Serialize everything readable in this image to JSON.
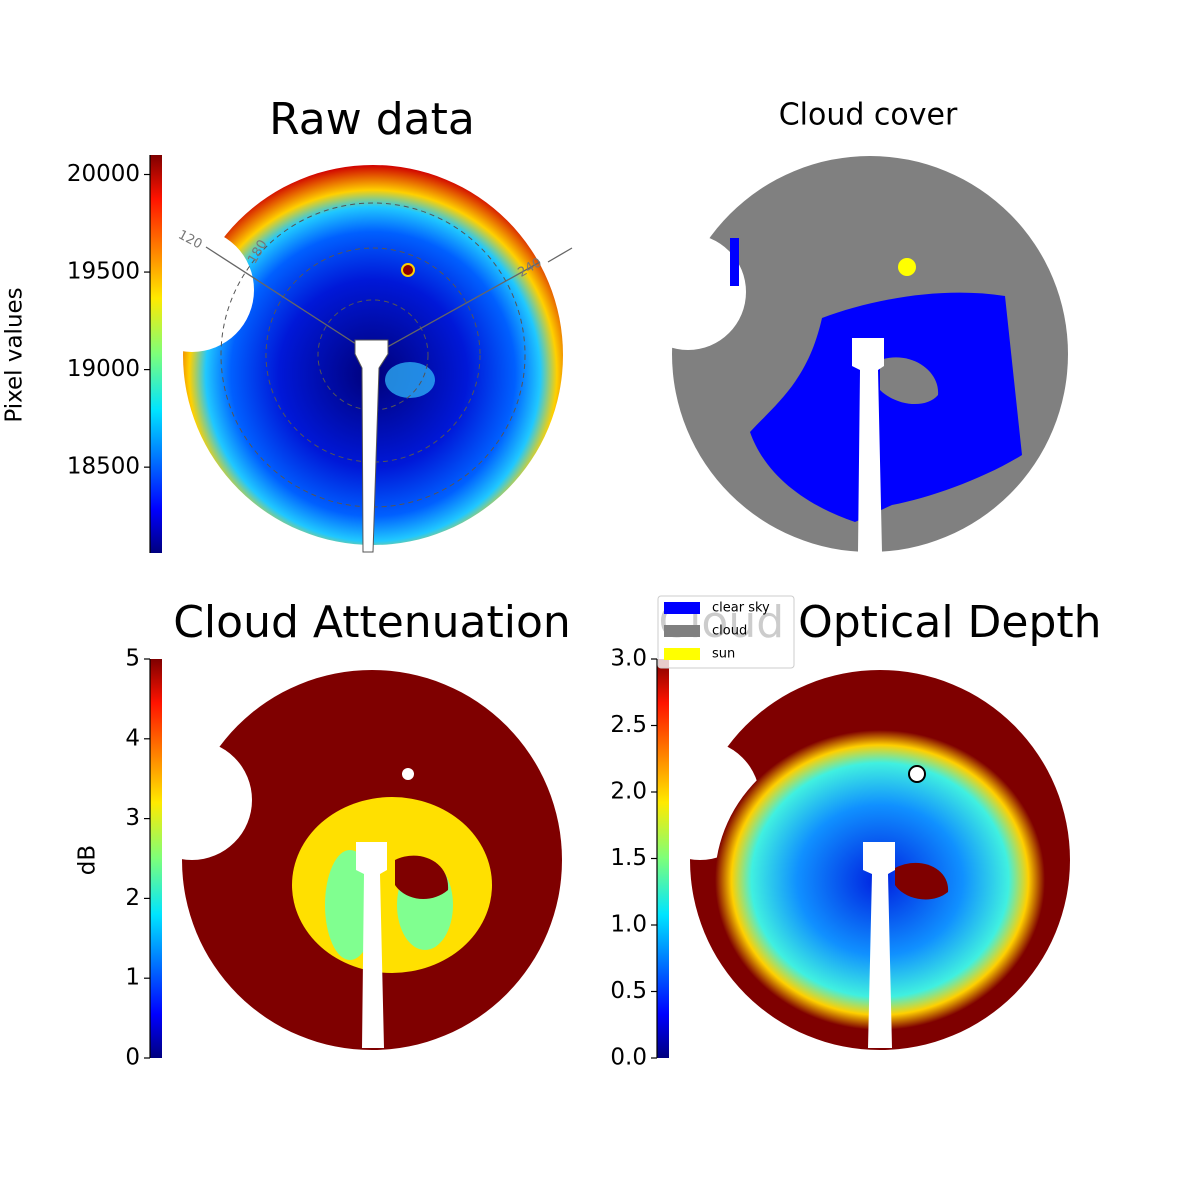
{
  "chart_data": [
    {
      "type": "image",
      "title": "Raw data",
      "colormap": "jet",
      "ylabel": "Pixel values",
      "ylim": [
        18060,
        20100
      ],
      "yticks": [
        18500,
        19000,
        19500,
        20000
      ],
      "annotations": [
        "120",
        "180",
        "240"
      ]
    },
    {
      "type": "image",
      "title": "Cloud cover",
      "series": [
        {
          "name": "clear sky",
          "color": "#0000ff"
        },
        {
          "name": "cloud",
          "color": "#808080"
        },
        {
          "name": "sun",
          "color": "#ffff00"
        }
      ]
    },
    {
      "type": "image",
      "title": "Cloud Attenuation",
      "colormap": "jet",
      "ylabel": "dB",
      "ylim": [
        0,
        5
      ],
      "yticks": [
        0,
        1,
        2,
        3,
        4,
        5
      ]
    },
    {
      "type": "image",
      "title": "Cloud Optical Depth",
      "colormap": "jet",
      "ylim": [
        0,
        3
      ],
      "yticks": [
        {
          "value": 0,
          "label": "0.0"
        },
        0.5,
        {
          "value": 1,
          "label": "1.0"
        },
        1.5,
        {
          "value": 2,
          "label": "2.0"
        },
        2.5,
        {
          "value": 3,
          "label": "3.0"
        }
      ]
    }
  ]
}
